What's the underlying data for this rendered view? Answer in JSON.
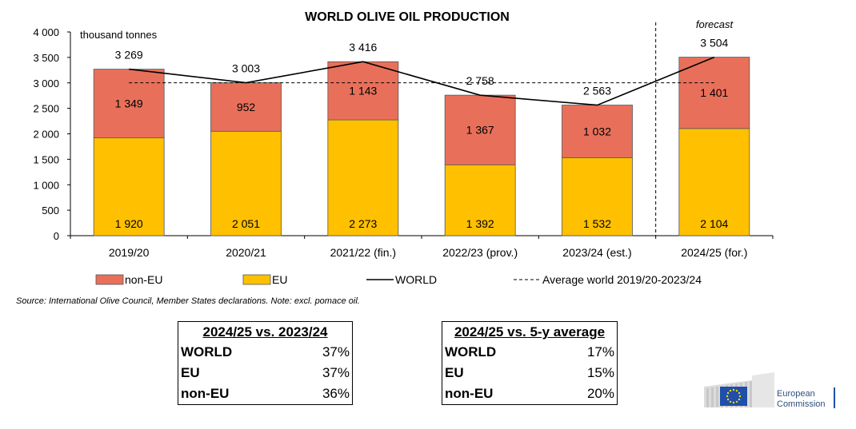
{
  "chart_data": {
    "type": "bar",
    "title": "WORLD OLIVE OIL PRODUCTION",
    "ylabel": "thousand tonnes",
    "ylim": [
      0,
      4000
    ],
    "yticks": [
      "0",
      "500",
      "1 000",
      "1 500",
      "2 000",
      "2 500",
      "3 000",
      "3 500",
      "4 000"
    ],
    "ytick_values": [
      0,
      500,
      1000,
      1500,
      2000,
      2500,
      3000,
      3500,
      4000
    ],
    "categories": [
      "2019/20",
      "2020/21",
      "2021/22 (fin.)",
      "2022/23 (prov.)",
      "2023/24 (est.)",
      "2024/25 (for.)"
    ],
    "series": [
      {
        "name": "EU",
        "values": [
          1920,
          2051,
          2273,
          1392,
          1532,
          2104
        ],
        "labels": [
          "1 920",
          "2 051",
          "2 273",
          "1 392",
          "1 532",
          "2 104"
        ],
        "color": "#ffc000"
      },
      {
        "name": "non-EU",
        "values": [
          1349,
          952,
          1143,
          1367,
          1032,
          1401
        ],
        "labels": [
          "1 349",
          "952",
          "1 143",
          "1 367",
          "1 032",
          "1 401"
        ],
        "color": "#e8705a"
      },
      {
        "name": "WORLD",
        "values": [
          3269,
          3003,
          3416,
          2758,
          2563,
          3504
        ],
        "labels": [
          "3 269",
          "3 003",
          "3 416",
          "2 758",
          "2 563",
          "3 504"
        ],
        "color": "#000000"
      }
    ],
    "average": {
      "name": "Average world 2019/20-2023/24",
      "value": 3002
    },
    "annotation": "forecast",
    "legend": [
      "non-EU",
      "EU",
      "WORLD",
      "Average world 2019/20-2023/24"
    ],
    "legend_position": "bottom"
  },
  "source_note": "Source: International Olive Council, Member States declarations. Note: excl. pomace oil.",
  "table_yoy": {
    "title": "2024/25 vs. 2023/24",
    "rows": [
      {
        "label": "WORLD",
        "value": "37%"
      },
      {
        "label": "EU",
        "value": "37%"
      },
      {
        "label": "non-EU",
        "value": "36%"
      }
    ]
  },
  "table_avg": {
    "title": "2024/25 vs. 5-y average",
    "rows": [
      {
        "label": "WORLD",
        "value": "17%"
      },
      {
        "label": "EU",
        "value": "15%"
      },
      {
        "label": "non-EU",
        "value": "20%"
      }
    ]
  },
  "logo": {
    "line1": "European",
    "line2": "Commission",
    "colors": {
      "flag": "#1f4fa8",
      "stars": "#ffd700"
    }
  }
}
